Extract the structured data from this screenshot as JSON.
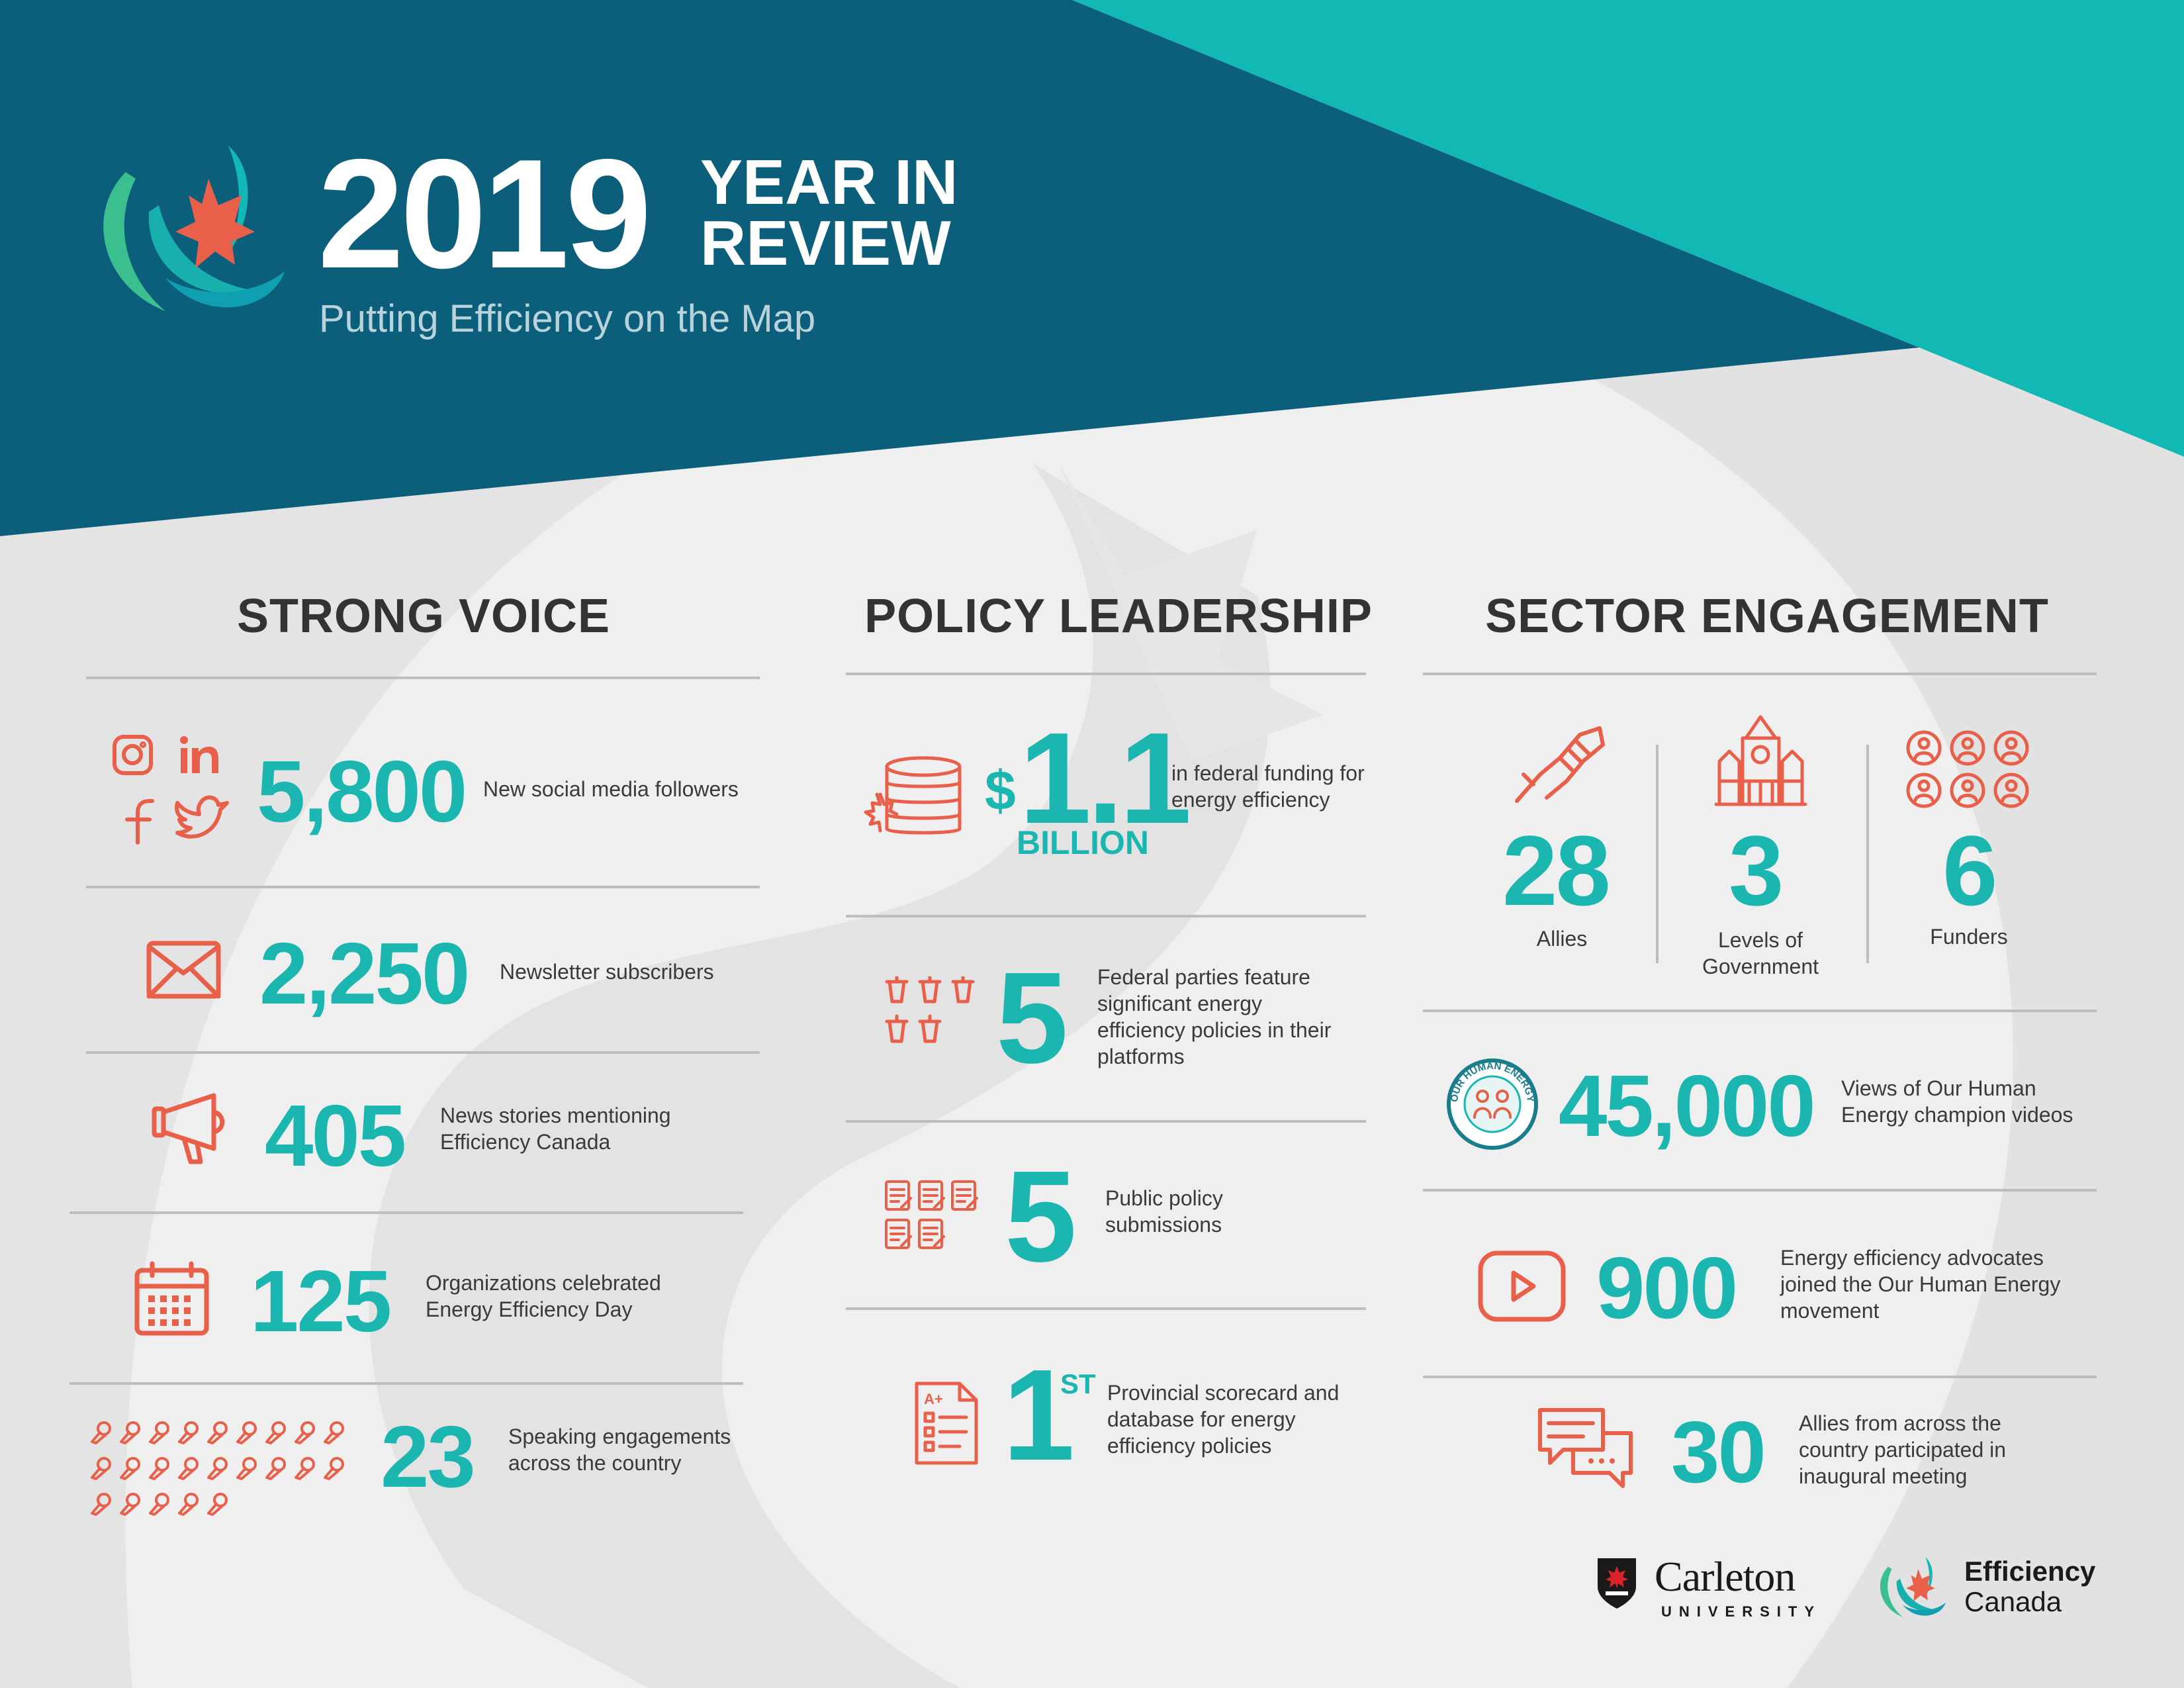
{
  "header": {
    "year": "2019",
    "title_line1": "YEAR IN",
    "title_line2": "REVIEW",
    "subtitle": "Putting Efficiency on the Map"
  },
  "colors": {
    "navy": "#0b5f7b",
    "teal": "#12b8b3",
    "coral": "#e9604a",
    "background": "#efefef"
  },
  "strong_voice": {
    "title": "STRONG VOICE",
    "stats": [
      {
        "value": "5,800",
        "label": "New social media followers",
        "icon": "social-media-icons"
      },
      {
        "value": "2,250",
        "label": "Newsletter subscribers",
        "icon": "envelope-icon"
      },
      {
        "value": "405",
        "label": "News stories mentioning Efficiency Canada",
        "icon": "megaphone-icon"
      },
      {
        "value": "125",
        "label": "Organizations celebrated Energy Efficiency Day",
        "icon": "calendar-icon"
      },
      {
        "value": "23",
        "label": "Speaking engagements across the country",
        "icon": "microphone-icon"
      }
    ]
  },
  "policy_leadership": {
    "title": "POLICY LEADERSHIP",
    "funding": {
      "currency": "$",
      "value": "1.1",
      "unit": "BILLION",
      "label": "in federal funding for energy efficiency",
      "icon": "coins-icon"
    },
    "stats": [
      {
        "value": "5",
        "label": "Federal parties feature significant energy efficiency policies in their platforms",
        "icon": "podium-icon"
      },
      {
        "value": "5",
        "label": "Public policy submissions",
        "icon": "document-icon"
      },
      {
        "value": "1",
        "superscript": "ST",
        "label": "Provincial scorecard and database for energy efficiency policies",
        "icon": "scorecard-icon"
      }
    ]
  },
  "sector_engagement": {
    "title": "SECTOR ENGAGEMENT",
    "top": [
      {
        "value": "28",
        "label": "Allies",
        "icon": "handshake-icon"
      },
      {
        "value": "3",
        "label": "Levels of Government",
        "icon": "parliament-icon"
      },
      {
        "value": "6",
        "label": "Funders",
        "icon": "people-icon"
      }
    ],
    "stats": [
      {
        "value": "45,000",
        "label": "Views of Our Human Energy champion videos",
        "icon": "our-human-energy-badge"
      },
      {
        "value": "900",
        "label": "Energy efficiency advocates joined the Our Human Energy movement",
        "icon": "video-play-icon"
      },
      {
        "value": "30",
        "label": "Allies from across the country participated in inaugural meeting",
        "icon": "chat-icon"
      }
    ],
    "badge_text": "OUR HUMAN ENERGY"
  },
  "footer": {
    "carleton_name": "Carleton",
    "carleton_sub": "UNIVERSITY",
    "ec_line1": "Efficiency",
    "ec_line2": "Canada"
  }
}
